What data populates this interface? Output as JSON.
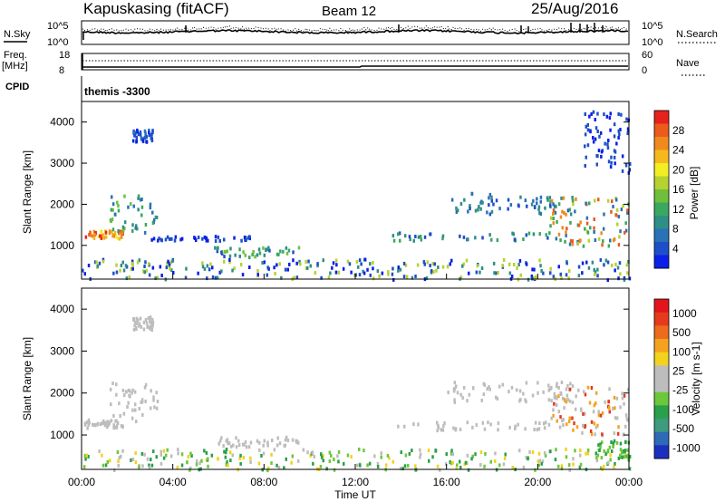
{
  "header": {
    "station": "Kapuskasing (fitACF)",
    "beam": "Beam 12",
    "date": "25/Aug/2016"
  },
  "left_labels": {
    "nsky": "N.Sky",
    "freq_line1": "Freq.",
    "freq_line2": "[MHz]",
    "cpid": "CPID"
  },
  "right_labels": {
    "nsearch": "N.Search",
    "nave": "Nave"
  },
  "cpid_text": "themis -3300",
  "noise_ticks": {
    "left_top": "10^5",
    "left_bottom": "10^0",
    "right_top": "10^5",
    "right_bottom": "10^0"
  },
  "freq_ticks": {
    "left_top": "18",
    "left_bottom": "8",
    "right_top": "60",
    "right_bottom": "0"
  },
  "chart_data": [
    {
      "type": "heatmap",
      "panel": "power",
      "ylabel": "Slant Range [km]",
      "y_ticks": [
        "1000",
        "2000",
        "3000",
        "4000"
      ],
      "ylim": [
        180,
        4500
      ],
      "colorbar": {
        "label": "Power [dB]",
        "ticks": [
          "4",
          "8",
          "12",
          "16",
          "20",
          "24",
          "28"
        ],
        "colors": [
          "#0a1fe8",
          "#1e4fc8",
          "#2a72b8",
          "#2f8f86",
          "#3aa860",
          "#6fbf3c",
          "#b6d22e",
          "#f3ee23",
          "#f7b81e",
          "#f08a1e",
          "#ec5a1c",
          "#e6221c"
        ]
      },
      "bands": [
        {
          "t": [
            0.1,
            1.8
          ],
          "r": [
            1200,
            1400
          ],
          "levels": [
            8,
            10,
            11,
            9,
            7
          ]
        },
        {
          "t": [
            1.2,
            3.3
          ],
          "r": [
            1350,
            2300
          ],
          "levels": [
            2,
            3,
            4,
            5
          ]
        },
        {
          "t": [
            2.2,
            3.1
          ],
          "r": [
            3550,
            3850
          ],
          "levels": [
            0,
            1,
            2
          ]
        },
        {
          "t": [
            5.8,
            9.6
          ],
          "r": [
            750,
            1000
          ],
          "levels": [
            1,
            3,
            4,
            5
          ]
        },
        {
          "t": [
            3.0,
            7.5
          ],
          "r": [
            1150,
            1260
          ],
          "levels": [
            0,
            1
          ]
        },
        {
          "t": [
            13.5,
            20.5
          ],
          "r": [
            1150,
            1350
          ],
          "levels": [
            1,
            3,
            4
          ]
        },
        {
          "t": [
            16.0,
            21.5
          ],
          "r": [
            1800,
            2300
          ],
          "levels": [
            1,
            2,
            3
          ]
        },
        {
          "t": [
            20.5,
            24.0
          ],
          "r": [
            1000,
            2200
          ],
          "levels": [
            2,
            4,
            6,
            9,
            10
          ]
        },
        {
          "t": [
            0.0,
            24.0
          ],
          "r": [
            200,
            700
          ],
          "levels": [
            0,
            1,
            3,
            6
          ]
        },
        {
          "t": [
            22.0,
            24.0
          ],
          "r": [
            2800,
            4300
          ],
          "levels": [
            0,
            1
          ]
        }
      ]
    },
    {
      "type": "heatmap",
      "panel": "velocity",
      "ylabel": "Slant Range [km]",
      "xlabel": "Time UT",
      "x_ticks": [
        "00:00",
        "04:00",
        "08:00",
        "12:00",
        "16:00",
        "20:00",
        "00:00"
      ],
      "y_ticks": [
        "1000",
        "2000",
        "3000",
        "4000"
      ],
      "ylim": [
        180,
        4500
      ],
      "colorbar": {
        "label": "Velocity [m s-1]",
        "ticks": [
          "1000",
          "500",
          "100",
          "25",
          "-25",
          "-100",
          "-500",
          "-1000"
        ],
        "colors": [
          "#1b2fbf",
          "#2e6ab5",
          "#3f9a7e",
          "#2aa04a",
          "#6cc83a",
          "#bdbdbd",
          "#bdbdbd",
          "#f3d21e",
          "#f5a31e",
          "#ee6a1c",
          "#e53a1c",
          "#e4141c"
        ]
      },
      "bands": [
        {
          "t": [
            0.1,
            1.8
          ],
          "r": [
            1200,
            1400
          ],
          "levels": [
            5
          ]
        },
        {
          "t": [
            1.2,
            3.3
          ],
          "r": [
            1350,
            2300
          ],
          "levels": [
            5
          ]
        },
        {
          "t": [
            2.2,
            3.1
          ],
          "r": [
            3550,
            3850
          ],
          "levels": [
            5
          ]
        },
        {
          "t": [
            5.8,
            9.6
          ],
          "r": [
            750,
            1000
          ],
          "levels": [
            5,
            6
          ]
        },
        {
          "t": [
            13.5,
            20.5
          ],
          "r": [
            1150,
            1350
          ],
          "levels": [
            5
          ]
        },
        {
          "t": [
            16.0,
            21.5
          ],
          "r": [
            1800,
            2300
          ],
          "levels": [
            5,
            6
          ]
        },
        {
          "t": [
            20.5,
            24.0
          ],
          "r": [
            1000,
            2200
          ],
          "levels": [
            5,
            6,
            8,
            10
          ]
        },
        {
          "t": [
            0.0,
            24.0
          ],
          "r": [
            200,
            700
          ],
          "levels": [
            3,
            4,
            5,
            7
          ]
        },
        {
          "t": [
            22.5,
            24.0
          ],
          "r": [
            500,
            900
          ],
          "levels": [
            3,
            4
          ]
        }
      ]
    }
  ]
}
